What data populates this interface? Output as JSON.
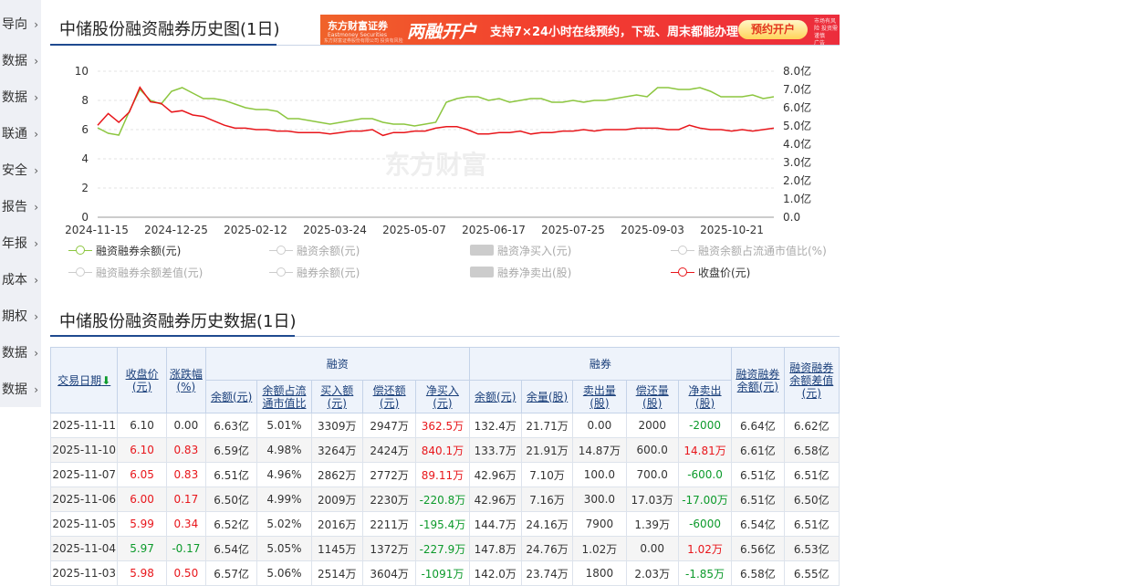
{
  "sidebar": {
    "items": [
      "导向",
      "数据",
      "数据",
      "联通",
      "安全",
      "报告",
      "年报",
      "成本",
      "期权",
      "数据",
      "数据"
    ]
  },
  "chart_section": {
    "title": "中储股份融资融券历史图(1日)"
  },
  "ad": {
    "logo": "东方财富证券",
    "logo_sub": "Eastmoney Securities",
    "fine_print": "东方财富证券股份有限公司 投资有风险",
    "headline": "两融开户",
    "text": "支持7×24小时在线预约，下班、周末都能办理！",
    "button": "预约开户",
    "warn": "市场有风险 投资需谨慎",
    "warn_badge": "广告"
  },
  "watermark": "东方财富",
  "chart_data": {
    "type": "line",
    "x_ticks": [
      "2024-11-15",
      "2024-12-25",
      "2025-02-12",
      "2025-03-24",
      "2025-05-07",
      "2025-06-17",
      "2025-07-25",
      "2025-09-03",
      "2025-10-21"
    ],
    "y_left": {
      "ticks": [
        "0",
        "2",
        "4",
        "6",
        "8",
        "10"
      ],
      "range": [
        0,
        10
      ]
    },
    "y_right": {
      "ticks": [
        "0.0",
        "1.0亿",
        "2.0亿",
        "3.0亿",
        "4.0亿",
        "5.0亿",
        "6.0亿",
        "7.0亿",
        "8.0亿"
      ],
      "range": [
        0,
        8
      ]
    },
    "grid": "horizontal dashed",
    "series": [
      {
        "name": "融资融券余额(元)",
        "axis": "right",
        "color": "#8cc63f",
        "unit": "亿",
        "values": [
          4.9,
          4.6,
          4.5,
          5.8,
          7.0,
          6.4,
          6.2,
          6.9,
          7.1,
          6.8,
          6.5,
          6.5,
          6.4,
          6.2,
          6.0,
          5.9,
          5.9,
          5.8,
          5.4,
          5.4,
          5.3,
          5.2,
          5.1,
          5.2,
          5.3,
          5.4,
          5.4,
          5.2,
          5.1,
          5.1,
          5.0,
          5.1,
          5.2,
          6.3,
          6.5,
          6.6,
          6.6,
          6.4,
          6.5,
          6.3,
          6.4,
          6.5,
          6.5,
          6.3,
          6.3,
          6.4,
          6.3,
          6.4,
          6.4,
          6.5,
          6.6,
          6.7,
          6.6,
          7.1,
          7.1,
          7.0,
          7.0,
          7.1,
          6.9,
          6.6,
          6.6,
          6.6,
          6.7,
          6.5,
          6.6
        ]
      },
      {
        "name": "收盘价(元)",
        "axis": "left",
        "color": "#e8161b",
        "unit": "元",
        "values": [
          6.3,
          7.1,
          6.5,
          7.2,
          8.9,
          7.9,
          7.8,
          7.2,
          7.3,
          7.0,
          6.9,
          6.6,
          6.3,
          6.1,
          6.1,
          6.0,
          6.0,
          5.9,
          5.9,
          5.8,
          5.8,
          5.8,
          5.7,
          5.8,
          5.9,
          5.9,
          6.0,
          5.6,
          5.8,
          5.8,
          5.9,
          5.9,
          6.1,
          6.2,
          6.2,
          6.0,
          5.7,
          5.7,
          5.8,
          5.8,
          5.9,
          5.7,
          5.8,
          5.8,
          5.9,
          5.9,
          6.0,
          5.9,
          6.0,
          6.0,
          6.0,
          6.1,
          6.1,
          6.1,
          6.0,
          6.0,
          6.3,
          6.1,
          6.0,
          6.0,
          5.9,
          6.0,
          5.9,
          6.0,
          6.1
        ]
      }
    ]
  },
  "legend": [
    {
      "label": "融资融券余额(元)",
      "active": true,
      "kind": "line",
      "color": "#8cc63f"
    },
    {
      "label": "融资余额(元)",
      "active": false,
      "kind": "line",
      "color": "#ccc"
    },
    {
      "label": "融资净买入(元)",
      "active": false,
      "kind": "box",
      "color": "#ccc"
    },
    {
      "label": "融资余额占流通市值比(%)",
      "active": false,
      "kind": "line",
      "color": "#ccc"
    },
    {
      "label": "融资融券余额差值(元)",
      "active": false,
      "kind": "line",
      "color": "#ccc"
    },
    {
      "label": "融券余额(元)",
      "active": false,
      "kind": "line",
      "color": "#ccc"
    },
    {
      "label": "融券净卖出(股)",
      "active": false,
      "kind": "box",
      "color": "#ccc"
    },
    {
      "label": "收盘价(元)",
      "active": true,
      "kind": "line",
      "color": "#e8161b"
    }
  ],
  "table_section": {
    "title": "中储股份融资融券历史数据(1日)"
  },
  "table": {
    "group_headers": {
      "financing": "融资",
      "securities": "融券"
    },
    "headers": {
      "date": "交易日期",
      "date_sort_icon": "⬇",
      "close": "收盘价(元)",
      "change": "涨跌幅(%)",
      "balance_total": "融资融券余额(元)",
      "balance_diff": "融资融券余额差值(元)",
      "fin": [
        "余额(元)",
        "余额占流通市值比",
        "买入额(元)",
        "偿还额(元)",
        "净买入(元)"
      ],
      "sec": [
        "余额(元)",
        "余量(股)",
        "卖出量(股)",
        "偿还量(股)",
        "净卖出(股)"
      ]
    },
    "rows": [
      {
        "date": "2025-11-11",
        "close": "6.10",
        "change": "0.00",
        "fin_bal": "6.63亿",
        "fin_ratio": "5.01%",
        "fin_buy": "3309万",
        "fin_repay": "2947万",
        "fin_net": "362.5万",
        "sec_bal": "132.4万",
        "sec_qty": "21.71万",
        "sec_sell": "0.00",
        "sec_repay": "2000",
        "sec_net": "-2000",
        "total": "6.64亿",
        "diff": "6.62亿",
        "close_color": "",
        "change_color": "",
        "fin_net_color": "red",
        "sec_net_color": "green"
      },
      {
        "date": "2025-11-10",
        "close": "6.10",
        "change": "0.83",
        "fin_bal": "6.59亿",
        "fin_ratio": "4.98%",
        "fin_buy": "3264万",
        "fin_repay": "2424万",
        "fin_net": "840.1万",
        "sec_bal": "133.7万",
        "sec_qty": "21.91万",
        "sec_sell": "14.87万",
        "sec_repay": "600.0",
        "sec_net": "14.81万",
        "total": "6.61亿",
        "diff": "6.58亿",
        "close_color": "red",
        "change_color": "red",
        "fin_net_color": "red",
        "sec_net_color": "red"
      },
      {
        "date": "2025-11-07",
        "close": "6.05",
        "change": "0.83",
        "fin_bal": "6.51亿",
        "fin_ratio": "4.96%",
        "fin_buy": "2862万",
        "fin_repay": "2772万",
        "fin_net": "89.11万",
        "sec_bal": "42.96万",
        "sec_qty": "7.10万",
        "sec_sell": "100.0",
        "sec_repay": "700.0",
        "sec_net": "-600.0",
        "total": "6.51亿",
        "diff": "6.51亿",
        "close_color": "red",
        "change_color": "red",
        "fin_net_color": "red",
        "sec_net_color": "green"
      },
      {
        "date": "2025-11-06",
        "close": "6.00",
        "change": "0.17",
        "fin_bal": "6.50亿",
        "fin_ratio": "4.99%",
        "fin_buy": "2009万",
        "fin_repay": "2230万",
        "fin_net": "-220.8万",
        "sec_bal": "42.96万",
        "sec_qty": "7.16万",
        "sec_sell": "300.0",
        "sec_repay": "17.03万",
        "sec_net": "-17.00万",
        "total": "6.51亿",
        "diff": "6.50亿",
        "close_color": "red",
        "change_color": "red",
        "fin_net_color": "green",
        "sec_net_color": "green"
      },
      {
        "date": "2025-11-05",
        "close": "5.99",
        "change": "0.34",
        "fin_bal": "6.52亿",
        "fin_ratio": "5.02%",
        "fin_buy": "2016万",
        "fin_repay": "2211万",
        "fin_net": "-195.4万",
        "sec_bal": "144.7万",
        "sec_qty": "24.16万",
        "sec_sell": "7900",
        "sec_repay": "1.39万",
        "sec_net": "-6000",
        "total": "6.54亿",
        "diff": "6.51亿",
        "close_color": "red",
        "change_color": "red",
        "fin_net_color": "green",
        "sec_net_color": "green"
      },
      {
        "date": "2025-11-04",
        "close": "5.97",
        "change": "-0.17",
        "fin_bal": "6.54亿",
        "fin_ratio": "5.05%",
        "fin_buy": "1145万",
        "fin_repay": "1372万",
        "fin_net": "-227.9万",
        "sec_bal": "147.8万",
        "sec_qty": "24.76万",
        "sec_sell": "1.02万",
        "sec_repay": "0.00",
        "sec_net": "1.02万",
        "total": "6.56亿",
        "diff": "6.53亿",
        "close_color": "green",
        "change_color": "green",
        "fin_net_color": "green",
        "sec_net_color": "red"
      },
      {
        "date": "2025-11-03",
        "close": "5.98",
        "change": "0.50",
        "fin_bal": "6.57亿",
        "fin_ratio": "5.06%",
        "fin_buy": "2514万",
        "fin_repay": "3604万",
        "fin_net": "-1091万",
        "sec_bal": "142.0万",
        "sec_qty": "23.74万",
        "sec_sell": "1800",
        "sec_repay": "2.03万",
        "sec_net": "-1.85万",
        "total": "6.58亿",
        "diff": "6.55亿",
        "close_color": "red",
        "change_color": "red",
        "fin_net_color": "green",
        "sec_net_color": "green"
      }
    ]
  }
}
